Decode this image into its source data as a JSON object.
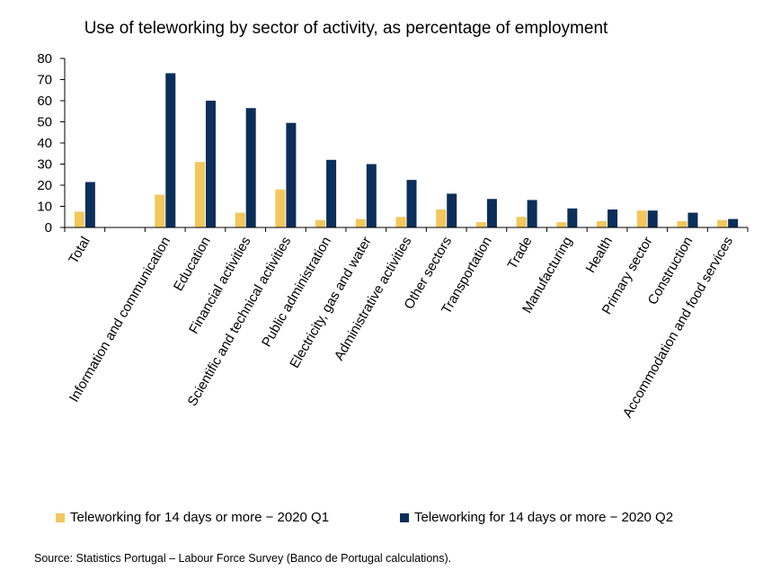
{
  "chart_data": {
    "type": "bar",
    "title": "Use of teleworking by sector of activity, as percentage of employment",
    "categories": [
      "Total",
      "",
      "Information and communication",
      "Education",
      "Financial activities",
      "Scientific and technical activities",
      "Public administration",
      "Electricity, gas and water",
      "Administrative activities",
      "Other sectors",
      "Transportation",
      "Trade",
      "Manufacturing",
      "Health",
      "Primary sector",
      "Construction",
      "Accommodation and food services"
    ],
    "series": [
      {
        "name": "Teleworking for 14 days or more − 2020 Q1",
        "color": "#F2C75C",
        "values": [
          7.5,
          null,
          15.5,
          31,
          7,
          18,
          3.5,
          4,
          5,
          8.5,
          2.5,
          5,
          2.5,
          3,
          8,
          3,
          3.5
        ]
      },
      {
        "name": "Teleworking for 14 days or more − 2020 Q2",
        "color": "#0B2E5A",
        "values": [
          21.5,
          null,
          73,
          60,
          56.5,
          49.5,
          32,
          30,
          22.5,
          16,
          13.5,
          13,
          9,
          8.5,
          8,
          7,
          4
        ]
      }
    ],
    "xlabel": "",
    "ylabel": "",
    "ylim": [
      0,
      80
    ],
    "yticks": [
      0,
      10,
      20,
      30,
      40,
      50,
      60,
      70,
      80
    ],
    "grid": false,
    "legend_position": "bottom"
  },
  "source": "Source: Statistics Portugal – Labour Force Survey (Banco de Portugal calculations)."
}
